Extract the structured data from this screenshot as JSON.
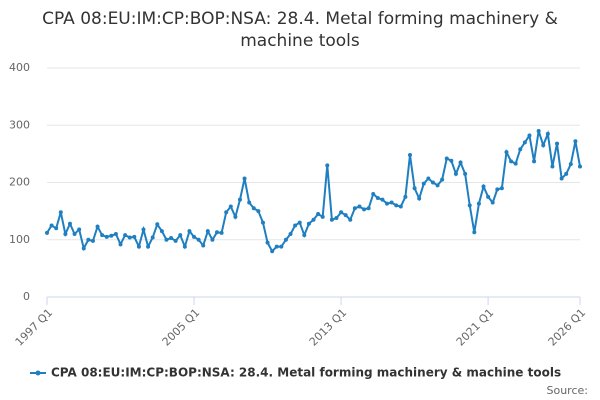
{
  "chart_data": {
    "type": "line",
    "title": "CPA 08:EU:IM:CP:BOP:NSA: 28.4. Metal forming machinery & machine tools",
    "categories": [
      "1997 Q1",
      null,
      null,
      null,
      null,
      null,
      null,
      null,
      null,
      null,
      null,
      null,
      null,
      null,
      null,
      null,
      null,
      null,
      null,
      null,
      null,
      null,
      null,
      null,
      null,
      null,
      null,
      null,
      null,
      null,
      null,
      null,
      "2005 Q1",
      null,
      null,
      null,
      null,
      null,
      null,
      null,
      null,
      null,
      null,
      null,
      null,
      null,
      null,
      null,
      null,
      null,
      null,
      null,
      null,
      null,
      null,
      null,
      null,
      null,
      null,
      null,
      null,
      null,
      null,
      null,
      "2013 Q1",
      null,
      null,
      null,
      null,
      null,
      null,
      null,
      null,
      null,
      null,
      null,
      null,
      null,
      null,
      null,
      null,
      null,
      null,
      null,
      null,
      null,
      null,
      null,
      null,
      null,
      null,
      null,
      null,
      null,
      null,
      null,
      "2021 Q1",
      null,
      null,
      null,
      null,
      null,
      null,
      null,
      null,
      null,
      null,
      null,
      null,
      null,
      null,
      null,
      null,
      null,
      null,
      null,
      "2026 Q1"
    ],
    "series": [
      {
        "name": "CPA 08:EU:IM:CP:BOP:NSA: 28.4. Metal forming machinery & machine tools",
        "color": "#1f7fc0",
        "values": [
          112,
          125,
          120,
          148,
          110,
          128,
          110,
          118,
          85,
          100,
          98,
          123,
          108,
          105,
          107,
          110,
          92,
          108,
          104,
          105,
          88,
          118,
          88,
          104,
          127,
          115,
          100,
          103,
          98,
          108,
          88,
          115,
          105,
          100,
          90,
          115,
          100,
          113,
          112,
          148,
          158,
          140,
          170,
          207,
          165,
          155,
          150,
          130,
          95,
          80,
          88,
          88,
          100,
          110,
          125,
          130,
          108,
          128,
          135,
          145,
          140,
          230,
          135,
          138,
          148,
          143,
          135,
          155,
          158,
          153,
          155,
          180,
          173,
          170,
          163,
          165,
          160,
          158,
          175,
          248,
          190,
          172,
          198,
          207,
          200,
          195,
          205,
          242,
          238,
          215,
          235,
          215,
          160,
          113,
          163,
          193,
          175,
          165,
          188,
          190,
          253,
          237,
          233,
          258,
          270,
          282,
          237,
          290,
          265,
          285,
          228,
          268,
          207,
          215,
          232,
          272,
          228
        ]
      }
    ],
    "ylim": [
      0,
      400
    ],
    "yticks": [
      0,
      100,
      200,
      300,
      400
    ],
    "grid": true,
    "legend": "bottom",
    "source": "Source:"
  }
}
